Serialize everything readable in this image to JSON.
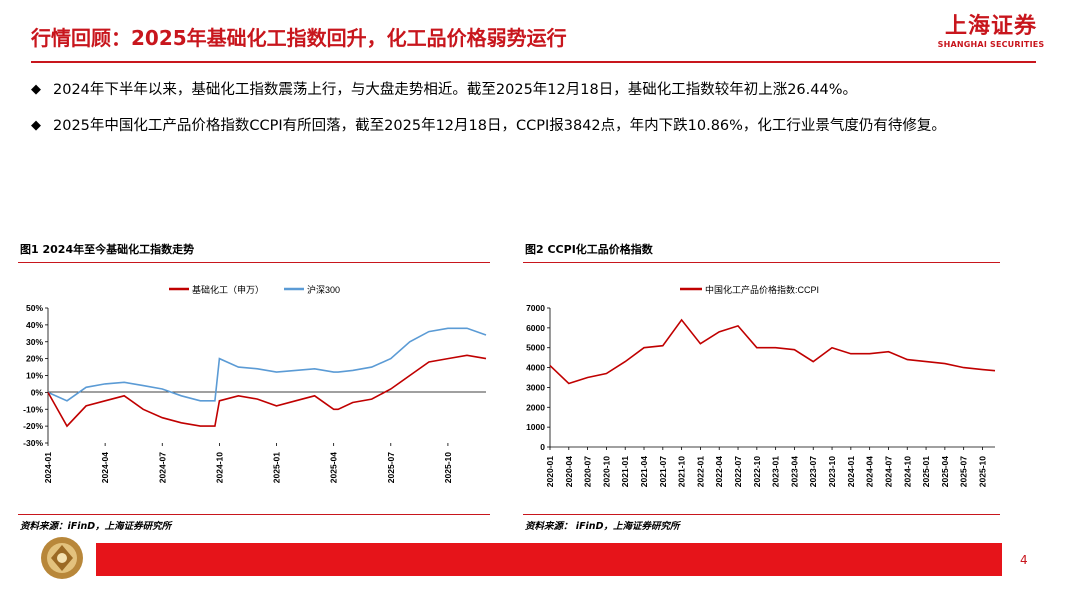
{
  "header": {
    "title": "行情回顾：2025年基础化工指数回升，化工品价格弱势运行",
    "logo_cn": "上海证券",
    "logo_en": "SHANGHAI SECURITIES"
  },
  "bullets": [
    {
      "icon": "diamond-bullet-icon",
      "text": "2024年下半年以来，基础化工指数震荡上行，与大盘走势相近。截至2025年12月18日，基础化工指数较年初上涨26.44%。"
    },
    {
      "icon": "diamond-bullet-icon",
      "text": "2025年中国化工产品价格指数CCPI有所回落，截至2025年12月18日，CCPI报3842点，年内下跌10.86%，化工行业景气度仍有待修复。"
    }
  ],
  "figure1": {
    "title": "图1 2024年至今基础化工指数走势",
    "source": "资料来源：iFinD，上海证券研究所"
  },
  "figure2": {
    "title": "图2 CCPI化工品价格指数",
    "source": "资料来源： iFinD，上海证券研究所"
  },
  "footer": {
    "page": "4"
  },
  "chart_data": [
    {
      "type": "line",
      "title": "",
      "x": [
        "2024-01",
        "2024-02",
        "2024-03",
        "2024-04",
        "2024-05",
        "2024-06",
        "2024-07",
        "2024-08",
        "2024-09",
        "2024-09-24",
        "2024-10",
        "2024-11",
        "2024-12",
        "2025-01",
        "2025-02",
        "2025-03",
        "2025-04",
        "2025-04-08",
        "2025-05",
        "2025-06",
        "2025-07",
        "2025-08",
        "2025-09",
        "2025-10",
        "2025-11",
        "2025-12"
      ],
      "x_ticks": [
        "2024-01",
        "2024-04",
        "2024-07",
        "2024-10",
        "2025-01",
        "2025-04",
        "2025-07",
        "2025-10"
      ],
      "series": [
        {
          "name": "基础化工（申万）",
          "color": "#c00000",
          "values": [
            0,
            -20,
            -8,
            -5,
            -2,
            -10,
            -15,
            -18,
            -20,
            -20,
            -5,
            -2,
            -4,
            -8,
            -5,
            -2,
            -10,
            -10,
            -6,
            -4,
            2,
            10,
            18,
            20,
            22,
            20
          ]
        },
        {
          "name": "沪深300",
          "color": "#5b9bd5",
          "values": [
            0,
            -5,
            3,
            5,
            6,
            4,
            2,
            -2,
            -5,
            -5,
            20,
            15,
            14,
            12,
            13,
            14,
            12,
            12,
            13,
            15,
            20,
            30,
            36,
            38,
            38,
            34
          ]
        }
      ],
      "ylim": [
        -30,
        50
      ],
      "y_ticks": [
        "50%",
        "40%",
        "30%",
        "20%",
        "10%",
        "0%",
        "-10%",
        "-20%",
        "-30%"
      ],
      "legend": "top-center",
      "grid": false
    },
    {
      "type": "line",
      "title": "",
      "x": [
        "2020-01",
        "2020-04",
        "2020-07",
        "2020-10",
        "2021-01",
        "2021-04",
        "2021-07",
        "2021-10",
        "2022-01",
        "2022-04",
        "2022-07",
        "2022-10",
        "2023-01",
        "2023-04",
        "2023-07",
        "2023-10",
        "2024-01",
        "2024-04",
        "2024-07",
        "2024-10",
        "2025-01",
        "2025-04",
        "2025-07",
        "2025-10",
        "2025-12"
      ],
      "x_ticks": [
        "2020-01",
        "2020-04",
        "2020-07",
        "2020-10",
        "2021-01",
        "2021-04",
        "2021-07",
        "2021-10",
        "2022-01",
        "2022-04",
        "2022-07",
        "2022-10",
        "2023-01",
        "2023-04",
        "2023-07",
        "2023-10",
        "2024-01",
        "2024-04",
        "2024-07",
        "2024-10",
        "2025-01",
        "2025-04",
        "2025-07",
        "2025-10"
      ],
      "series": [
        {
          "name": "中国化工产品价格指数:CCPI",
          "color": "#c00000",
          "values": [
            4100,
            3200,
            3500,
            3700,
            4300,
            5000,
            5100,
            6400,
            5200,
            5800,
            6100,
            5000,
            5000,
            4900,
            4300,
            5000,
            4700,
            4700,
            4800,
            4400,
            4300,
            4200,
            4000,
            3900,
            3842
          ]
        }
      ],
      "ylim": [
        0,
        7000
      ],
      "y_ticks": [
        "7000",
        "6000",
        "5000",
        "4000",
        "3000",
        "2000",
        "1000",
        "0"
      ],
      "legend": "top-center",
      "grid": false
    }
  ]
}
